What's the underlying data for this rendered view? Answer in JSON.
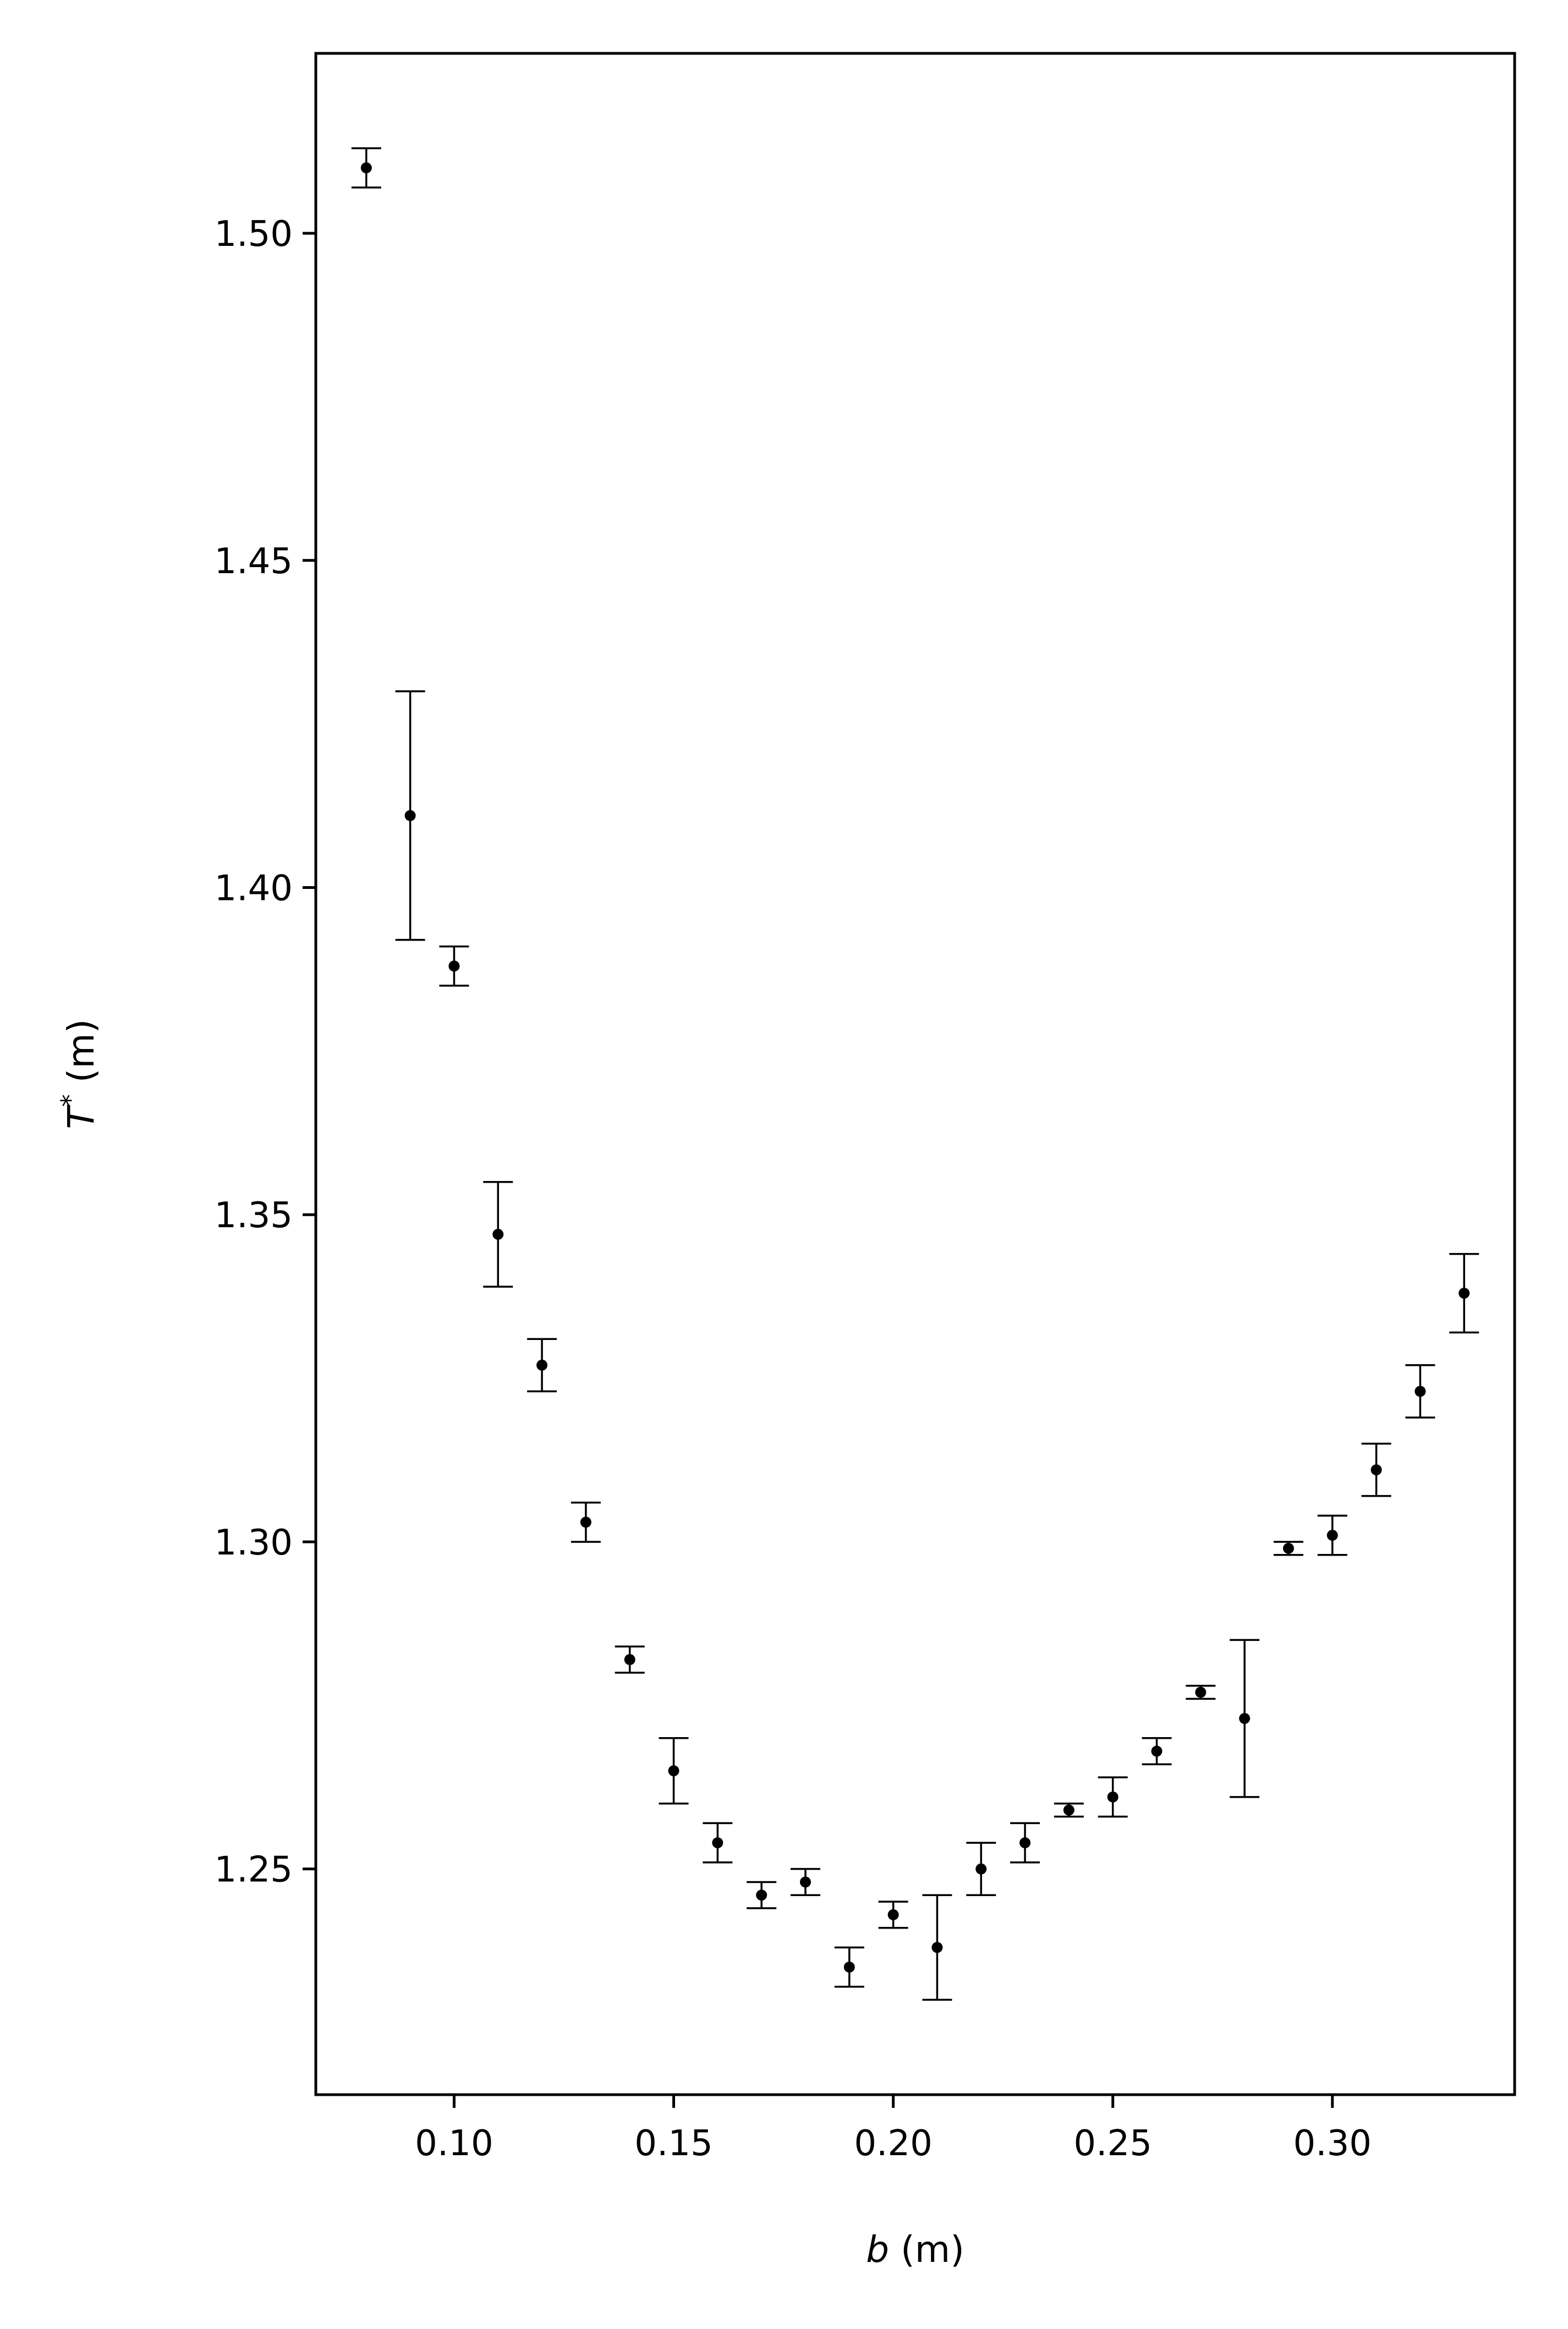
{
  "chart_data": {
    "type": "scatter",
    "title": "",
    "xlabel": "b (m)",
    "xlabel_parts": {
      "symbol": "b",
      "unit": " (m)"
    },
    "ylabel": "T* (m)",
    "ylabel_parts": {
      "symbol": "T",
      "sup": "*",
      "unit": " (m)"
    },
    "xlim": [
      0.0685,
      0.3415
    ],
    "ylim": [
      1.2155,
      1.5275
    ],
    "xticks": [
      0.1,
      0.15,
      0.2,
      0.25,
      0.3
    ],
    "xtick_labels": [
      "0.10",
      "0.15",
      "0.20",
      "0.25",
      "0.30"
    ],
    "yticks": [
      1.25,
      1.3,
      1.35,
      1.4,
      1.45,
      1.5
    ],
    "ytick_labels": [
      "1.25",
      "1.30",
      "1.35",
      "1.40",
      "1.45",
      "1.50"
    ],
    "grid": false,
    "legend": false,
    "marker_color": "#000000",
    "series": [
      {
        "x": [
          0.08,
          0.09,
          0.1,
          0.11,
          0.12,
          0.13,
          0.14,
          0.15,
          0.16,
          0.17,
          0.18,
          0.19,
          0.2,
          0.21,
          0.22,
          0.23,
          0.24,
          0.25,
          0.26,
          0.27,
          0.28,
          0.29,
          0.3,
          0.31,
          0.32,
          0.33
        ],
        "y": [
          1.51,
          1.411,
          1.388,
          1.347,
          1.327,
          1.303,
          1.282,
          1.265,
          1.254,
          1.246,
          1.248,
          1.235,
          1.243,
          1.238,
          1.25,
          1.254,
          1.259,
          1.261,
          1.268,
          1.277,
          1.273,
          1.299,
          1.301,
          1.311,
          1.323,
          1.338
        ],
        "yerr": [
          0.003,
          0.019,
          0.003,
          0.008,
          0.004,
          0.003,
          0.002,
          0.005,
          0.003,
          0.002,
          0.002,
          0.003,
          0.002,
          0.008,
          0.004,
          0.003,
          0.001,
          0.003,
          0.002,
          0.001,
          0.012,
          0.001,
          0.003,
          0.004,
          0.004,
          0.006
        ]
      }
    ]
  }
}
